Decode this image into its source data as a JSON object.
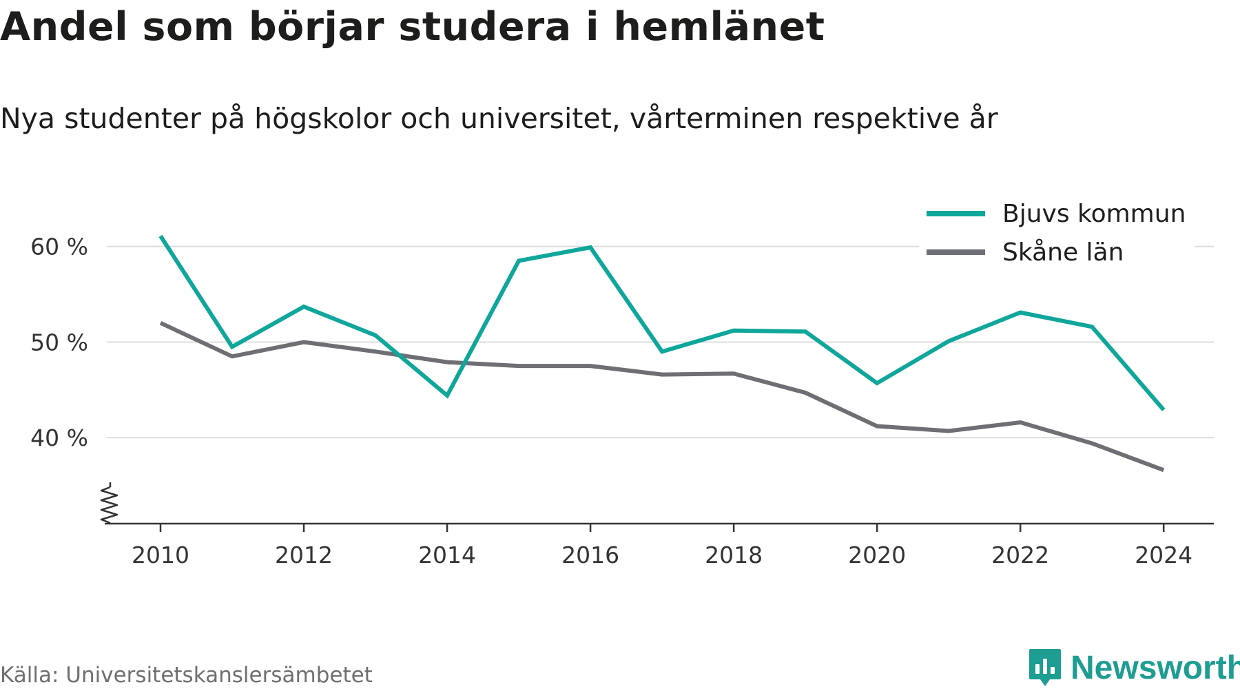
{
  "title": "Andel som börjar studera i hemlänet",
  "subtitle": "Nya studenter på högskolor och universitet, vårterminen respektive år",
  "source": "Källa: Universitetskanslersämbetet",
  "brand": {
    "name": "Newsworthy",
    "icon": "newsworthy-logo-icon",
    "color": "#1e9d92"
  },
  "chart_data": {
    "type": "line",
    "x": [
      2010,
      2011,
      2012,
      2013,
      2014,
      2015,
      2016,
      2017,
      2018,
      2019,
      2020,
      2021,
      2022,
      2023,
      2024
    ],
    "series": [
      {
        "name": "Bjuvs kommun",
        "color": "#0fa69b",
        "values": [
          61.1,
          49.5,
          53.7,
          50.7,
          44.4,
          58.5,
          59.9,
          49.0,
          51.2,
          51.1,
          45.7,
          50.1,
          53.1,
          51.6,
          42.9
        ]
      },
      {
        "name": "Skåne län",
        "color": "#6e6e75",
        "values": [
          52.0,
          48.5,
          50.0,
          49.0,
          47.9,
          47.5,
          47.5,
          46.6,
          46.7,
          44.7,
          41.2,
          40.7,
          41.6,
          39.4,
          36.6
        ]
      }
    ],
    "xticks": [
      2010,
      2012,
      2014,
      2016,
      2018,
      2020,
      2022,
      2024
    ],
    "yticks": [
      {
        "value": 40,
        "label": "40 %"
      },
      {
        "value": 50,
        "label": "50 %"
      },
      {
        "value": 60,
        "label": "60 %"
      }
    ],
    "ylim": [
      31,
      62
    ],
    "xlim": [
      2009.25,
      2024.7
    ],
    "y_axis_break": true,
    "grid": true,
    "legend_position": "top-right"
  }
}
